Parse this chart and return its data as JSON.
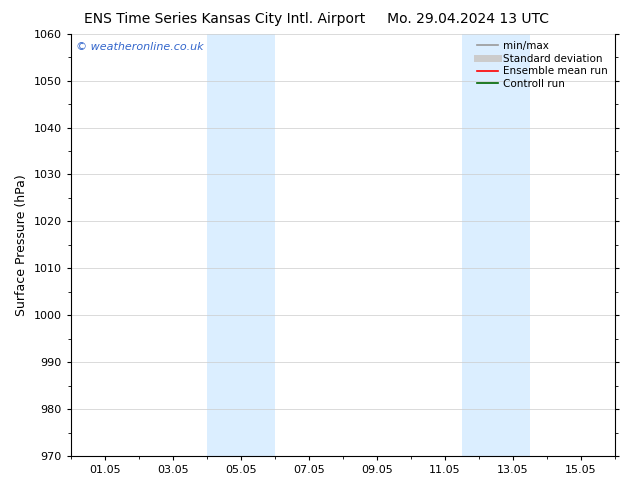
{
  "title_left": "ENS Time Series Kansas City Intl. Airport",
  "title_right": "Mo. 29.04.2024 13 UTC",
  "ylabel": "Surface Pressure (hPa)",
  "ylim": [
    970,
    1060
  ],
  "yticks": [
    970,
    980,
    990,
    1000,
    1010,
    1020,
    1030,
    1040,
    1050,
    1060
  ],
  "xlabel": "",
  "xtick_labels": [
    "01.05",
    "03.05",
    "05.05",
    "07.05",
    "09.05",
    "11.05",
    "13.05",
    "15.05"
  ],
  "xtick_positions": [
    1.0,
    3.0,
    5.0,
    7.0,
    9.0,
    11.0,
    13.0,
    15.0
  ],
  "xlim": [
    0.0,
    16.0
  ],
  "shaded_bands": [
    {
      "x_start": 4.0,
      "x_end": 6.0,
      "color": "#dbeeff"
    },
    {
      "x_start": 11.5,
      "x_end": 13.5,
      "color": "#dbeeff"
    }
  ],
  "watermark_text": "© weatheronline.co.uk",
  "watermark_color": "#3366cc",
  "watermark_fontsize": 8,
  "legend_items": [
    {
      "label": "min/max",
      "color": "#999999",
      "lw": 1.2,
      "ls": "-"
    },
    {
      "label": "Standard deviation",
      "color": "#cccccc",
      "lw": 5,
      "ls": "-"
    },
    {
      "label": "Ensemble mean run",
      "color": "#ff0000",
      "lw": 1.2,
      "ls": "-"
    },
    {
      "label": "Controll run",
      "color": "#006600",
      "lw": 1.2,
      "ls": "-"
    }
  ],
  "bg_color": "#ffffff",
  "grid_color": "#cccccc",
  "title_fontsize": 10,
  "ylabel_fontsize": 9,
  "tick_fontsize": 8,
  "legend_fontsize": 7.5
}
